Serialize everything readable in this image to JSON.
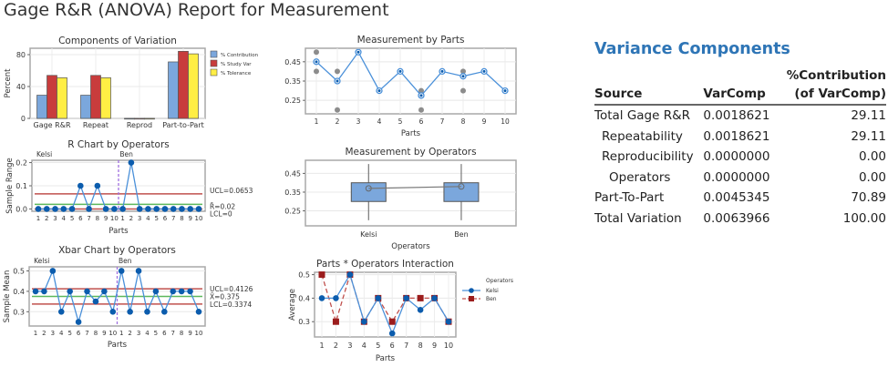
{
  "report": {
    "title": "Gage R&R (ANOVA) Report for Measurement"
  },
  "colors": {
    "contribution": "#7ba7dc",
    "study_var": "#c83c3c",
    "tolerance": "#ffee44",
    "series_blue": "#0b5cad",
    "line_blue": "#4a90d9",
    "control_red": "#c0504d",
    "center_green": "#5cb85c",
    "ben_red": "#9b1c1c",
    "divider_purple": "#a070e0",
    "var_title": "#2e75b6"
  },
  "chart_data": [
    {
      "type": "bar",
      "title": "Components of Variation",
      "ylabel": "Percent",
      "xlabel": "",
      "categories": [
        "Gage R&R",
        "Repeat",
        "Reprod",
        "Part-to-Part"
      ],
      "series": [
        {
          "name": "% Contribution",
          "values": [
            29.11,
            29.11,
            0,
            70.89
          ]
        },
        {
          "name": "% Study Var",
          "values": [
            53.95,
            53.95,
            0,
            84.2
          ]
        },
        {
          "name": "% Tolerance",
          "values": [
            51,
            51,
            0,
            81
          ]
        }
      ],
      "ylim": [
        0,
        88
      ],
      "yticks": [
        "0",
        "40",
        "80"
      ],
      "grid": true,
      "legend": "right"
    },
    {
      "type": "line",
      "title": "R Chart by Operators",
      "ylabel": "Sample Range",
      "xlabel": "Parts",
      "groups": [
        "Kelsi",
        "Ben"
      ],
      "x": [
        "1",
        "2",
        "3",
        "4",
        "5",
        "6",
        "7",
        "8",
        "9",
        "10",
        "1",
        "2",
        "3",
        "4",
        "5",
        "6",
        "7",
        "8",
        "9",
        "10"
      ],
      "values": [
        0,
        0,
        0,
        0,
        0,
        0.1,
        0,
        0.1,
        0,
        0,
        0,
        0.2,
        0,
        0,
        0,
        0,
        0,
        0,
        0,
        0
      ],
      "ylim": [
        -0.01,
        0.21
      ],
      "yticks": [
        "0.0",
        "0.1",
        "0.2"
      ],
      "limits": [
        {
          "label": "UCL=0.0653",
          "value": 0.0653,
          "kind": "ucl"
        },
        {
          "label": "R̄=0.02",
          "value": 0.02,
          "kind": "center"
        },
        {
          "label": "LCL=0",
          "value": 0,
          "kind": "lcl"
        }
      ]
    },
    {
      "type": "line",
      "title": "Xbar Chart by Operators",
      "ylabel": "Sample Mean",
      "xlabel": "Parts",
      "groups": [
        "Kelsi",
        "Ben"
      ],
      "x": [
        "1",
        "2",
        "3",
        "4",
        "5",
        "6",
        "7",
        "8",
        "9",
        "10",
        "1",
        "2",
        "3",
        "4",
        "5",
        "6",
        "7",
        "8",
        "9",
        "10"
      ],
      "values": [
        0.4,
        0.4,
        0.5,
        0.3,
        0.4,
        0.25,
        0.4,
        0.35,
        0.4,
        0.3,
        0.5,
        0.3,
        0.5,
        0.3,
        0.4,
        0.3,
        0.4,
        0.4,
        0.4,
        0.3
      ],
      "ylim": [
        0.23,
        0.52
      ],
      "yticks": [
        "0.3",
        "0.4",
        "0.5"
      ],
      "limits": [
        {
          "label": "UCL=0.4126",
          "value": 0.4126,
          "kind": "ucl"
        },
        {
          "label": "X̄=0.375",
          "value": 0.375,
          "kind": "center"
        },
        {
          "label": "LCL=0.3374",
          "value": 0.3374,
          "kind": "lcl"
        }
      ]
    },
    {
      "type": "scatter",
      "title": "Measurement by Parts",
      "xlabel": "Parts",
      "ylabel": "",
      "x": [
        "1",
        "2",
        "3",
        "4",
        "5",
        "6",
        "7",
        "8",
        "9",
        "10"
      ],
      "means": [
        0.45,
        0.35,
        0.5,
        0.3,
        0.4,
        0.275,
        0.4,
        0.375,
        0.4,
        0.3
      ],
      "observations": [
        [
          0.5,
          0.4
        ],
        [
          0.4,
          0.2
        ],
        [
          0.5
        ],
        [
          0.3
        ],
        [
          0.4
        ],
        [
          0.3,
          0.2
        ],
        [
          0.4
        ],
        [
          0.4,
          0.3
        ],
        [
          0.4
        ],
        [
          0.3
        ]
      ],
      "ylim": [
        0.18,
        0.52
      ],
      "yticks": [
        "0.25",
        "0.35",
        "0.45"
      ]
    },
    {
      "type": "box",
      "title": "Measurement by Operators",
      "xlabel": "Operators",
      "ylabel": "",
      "categories": [
        "Kelsi",
        "Ben"
      ],
      "boxes": [
        {
          "min": 0.2,
          "q1": 0.3,
          "q3": 0.4,
          "max": 0.5,
          "mean": 0.37
        },
        {
          "min": 0.2,
          "q1": 0.3,
          "q3": 0.4,
          "max": 0.5,
          "mean": 0.38
        }
      ],
      "ylim": [
        0.17,
        0.52
      ],
      "yticks": [
        "0.25",
        "0.35",
        "0.45"
      ]
    },
    {
      "type": "line",
      "title": "Parts * Operators Interaction",
      "ylabel": "Average",
      "xlabel": "Parts",
      "x": [
        "1",
        "2",
        "3",
        "4",
        "5",
        "6",
        "7",
        "8",
        "9",
        "10"
      ],
      "legend_title": "Operators",
      "legend": "right",
      "series": [
        {
          "name": "Kelsi",
          "values": [
            0.4,
            0.4,
            0.5,
            0.3,
            0.4,
            0.25,
            0.4,
            0.35,
            0.4,
            0.3
          ]
        },
        {
          "name": "Ben",
          "values": [
            0.5,
            0.3,
            0.5,
            0.3,
            0.4,
            0.3,
            0.4,
            0.4,
            0.4,
            0.3
          ]
        }
      ],
      "ylim": [
        0.235,
        0.51
      ],
      "yticks": [
        "0.3",
        "0.4",
        "0.5"
      ]
    }
  ],
  "variance_components": {
    "title": "Variance Components",
    "headers": {
      "source": "Source",
      "varcomp": "VarComp",
      "contrib_line1": "%Contribution",
      "contrib_line2": "(of VarComp)"
    },
    "rows": [
      {
        "source": "Total Gage R&R",
        "varcomp": "0.0018621",
        "contribution": "29.11"
      },
      {
        "source": "Repeatability",
        "varcomp": "0.0018621",
        "contribution": "29.11"
      },
      {
        "source": "Reproducibility",
        "varcomp": "0.0000000",
        "contribution": "0.00"
      },
      {
        "source": "Operators",
        "varcomp": "0.0000000",
        "contribution": "0.00"
      },
      {
        "source": "Part-To-Part",
        "varcomp": "0.0045345",
        "contribution": "70.89"
      },
      {
        "source": "Total Variation",
        "varcomp": "0.0063966",
        "contribution": "100.00"
      }
    ]
  }
}
